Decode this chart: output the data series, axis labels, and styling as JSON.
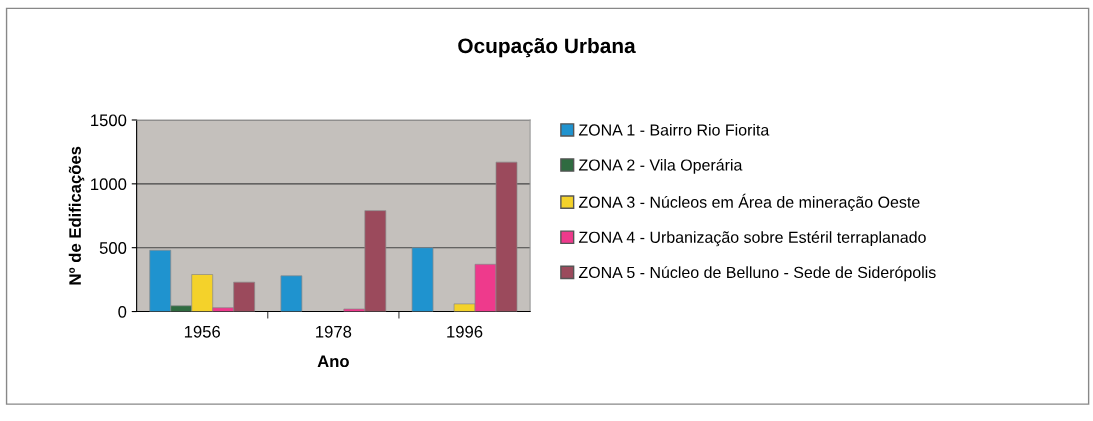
{
  "chart_data": {
    "type": "bar",
    "title": "Ocupação Urbana",
    "xlabel": "Ano",
    "ylabel": "Nº de Edificações",
    "categories": [
      "1956",
      "1978",
      "1996"
    ],
    "series": [
      {
        "name": "ZONA 1 - Bairro Rio Fiorita",
        "color": "#1f93cf",
        "values": [
          480,
          280,
          500
        ]
      },
      {
        "name": "ZONA 2 - Vila Operária",
        "color": "#2f6b40",
        "values": [
          45,
          null,
          null
        ]
      },
      {
        "name": "ZONA 3 - Núcleos em Área de mineração Oeste",
        "color": "#f4d22a",
        "values": [
          290,
          null,
          60
        ]
      },
      {
        "name": "ZONA 4 - Urbanização sobre Estéril terraplanado",
        "color": "#ee3a8c",
        "values": [
          30,
          20,
          370
        ]
      },
      {
        "name": "ZONA 5 - Núcleo de Belluno - Sede de Siderópolis",
        "color": "#9b4a5c",
        "values": [
          230,
          790,
          1170
        ]
      }
    ],
    "ylim": [
      0,
      1500
    ],
    "yticks": [
      0,
      500,
      1000,
      1500
    ],
    "grid": "y",
    "legend": "right"
  }
}
